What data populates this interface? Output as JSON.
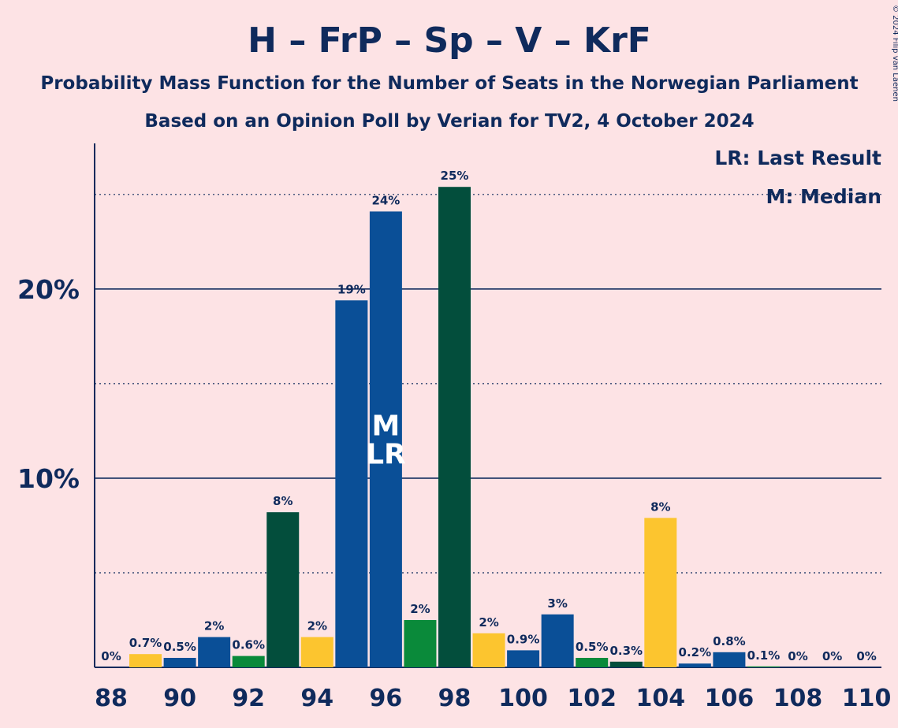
{
  "chart_data": {
    "type": "bar",
    "title": "H – FrP – Sp – V – KrF",
    "subtitle": "Probability Mass Function for the Number of Seats in the Norwegian Parliament",
    "subtitle2": "Based on an Opinion Poll by Verian for TV2, 4 October 2024",
    "copyright": "© 2024 Filip van Laenen",
    "legend": {
      "last_result": "LR: Last Result",
      "median": "M: Median",
      "placement": "top-right"
    },
    "ylim": [
      0,
      27.7
    ],
    "grid": true,
    "y_ticks": [
      {
        "value": 10,
        "label": "10%"
      },
      {
        "value": 20,
        "label": "20%"
      }
    ],
    "x_ticks": [
      "88",
      "90",
      "92",
      "94",
      "96",
      "98",
      "100",
      "102",
      "104",
      "106",
      "108",
      "110"
    ],
    "x": [
      88,
      89,
      90,
      91,
      92,
      93,
      94,
      95,
      96,
      97,
      98,
      99,
      100,
      101,
      102,
      103,
      104,
      105,
      106,
      107,
      108,
      109,
      110
    ],
    "values": [
      0,
      0.7,
      0.5,
      1.6,
      0.6,
      8.2,
      1.6,
      19.4,
      24.1,
      2.5,
      25.4,
      1.8,
      0.9,
      2.8,
      0.5,
      0.3,
      7.9,
      0.2,
      0.8,
      0.05,
      0,
      0,
      0
    ],
    "labels": [
      "0%",
      "0.7%",
      "0.5%",
      "2%",
      "0.6%",
      "8%",
      "2%",
      "19%",
      "24%",
      "2%",
      "25%",
      "2%",
      "0.9%",
      "3%",
      "0.5%",
      "0.3%",
      "8%",
      "0.2%",
      "0.8%",
      "0.1%",
      "0%",
      "0%",
      "0%"
    ],
    "bar_colors": [
      "#0a4f97",
      "#fcc52f",
      "#0a4f97",
      "#0a4f97",
      "#0a8a3a",
      "#034e3c",
      "#fcc52f",
      "#0a4f97",
      "#0a4f97",
      "#0a8a3a",
      "#034e3c",
      "#fcc52f",
      "#0a4f97",
      "#0a4f97",
      "#0a8a3a",
      "#034e3c",
      "#fcc52f",
      "#0a4f97",
      "#0a4f97",
      "#0a8a3a",
      "#034e3c",
      "#fcc52f",
      "#0a4f97"
    ],
    "median_seat": 96,
    "median_mark": "M",
    "last_result_seat": 96,
    "last_result_mark": "LR"
  }
}
